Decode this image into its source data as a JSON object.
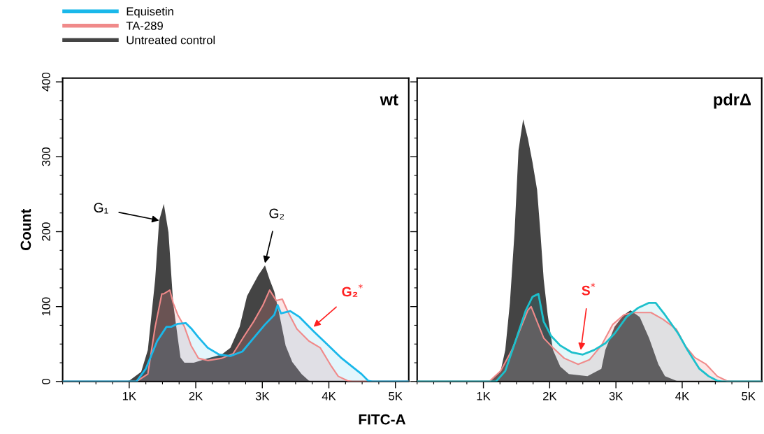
{
  "chart_data": [
    {
      "type": "area",
      "title": "wt",
      "xlabel": "FITC-A",
      "ylabel": "Count",
      "legend": "top left",
      "xlim": [
        0,
        5200
      ],
      "ylim": [
        0,
        405
      ],
      "xticks": [
        {
          "value": 0,
          "label": null
        },
        {
          "value": 250,
          "label": null
        },
        {
          "value": 500,
          "label": null
        },
        {
          "value": 750,
          "label": null
        },
        {
          "value": 1000,
          "label": "1K"
        },
        {
          "value": 1250,
          "label": null
        },
        {
          "value": 1500,
          "label": null
        },
        {
          "value": 1750,
          "label": null
        },
        {
          "value": 2000,
          "label": "2K"
        },
        {
          "value": 2250,
          "label": null
        },
        {
          "value": 2500,
          "label": null
        },
        {
          "value": 2750,
          "label": null
        },
        {
          "value": 3000,
          "label": "3K"
        },
        {
          "value": 3250,
          "label": null
        },
        {
          "value": 3500,
          "label": null
        },
        {
          "value": 3750,
          "label": null
        },
        {
          "value": 4000,
          "label": "4K"
        },
        {
          "value": 4250,
          "label": null
        },
        {
          "value": 4500,
          "label": null
        },
        {
          "value": 4750,
          "label": null
        },
        {
          "value": 5000,
          "label": "5K"
        }
      ],
      "yticks": [
        0,
        {
          "value": 25,
          "label": null
        },
        {
          "value": 50,
          "label": null
        },
        {
          "value": 75,
          "label": null
        },
        100,
        {
          "value": 125,
          "label": null
        },
        {
          "value": 150,
          "label": null
        },
        {
          "value": 175,
          "label": null
        },
        200,
        {
          "value": 225,
          "label": null
        },
        {
          "value": 250,
          "label": null
        },
        {
          "value": 275,
          "label": null
        },
        300,
        {
          "value": 325,
          "label": null
        },
        {
          "value": 350,
          "label": null
        },
        {
          "value": 375,
          "label": null
        },
        400
      ],
      "series": [
        {
          "name": "Untreated control",
          "color": "#444444",
          "x": [
            0,
            900,
            1000,
            1180,
            1280,
            1390,
            1450,
            1520,
            1590,
            1660,
            1730,
            1770,
            1830,
            1970,
            2180,
            2390,
            2520,
            2660,
            2770,
            2830,
            2940,
            3040,
            3110,
            3180,
            3250,
            3350,
            3450,
            3590,
            3700,
            3800,
            5200
          ],
          "values": [
            0,
            0,
            1,
            13,
            42,
            136,
            215,
            237,
            199,
            105,
            58,
            32,
            25,
            25,
            31,
            36,
            45,
            73,
            114,
            124,
            142,
            155,
            136,
            120,
            92,
            48,
            26,
            10,
            1,
            0,
            0
          ]
        },
        {
          "name": "TA-289",
          "color": "#f08a8a",
          "x": [
            0,
            1110,
            1280,
            1390,
            1490,
            1520,
            1610,
            1660,
            1730,
            1830,
            1930,
            2040,
            2180,
            2390,
            2560,
            2730,
            2870,
            3010,
            3110,
            3210,
            3300,
            3390,
            3520,
            3700,
            3870,
            4040,
            4140,
            4280,
            4350,
            5200
          ],
          "values": [
            0,
            0,
            10,
            73,
            117,
            117,
            122,
            105,
            89,
            73,
            48,
            31,
            28,
            31,
            37,
            61,
            80,
            102,
            122,
            108,
            110,
            92,
            70,
            54,
            45,
            20,
            7,
            1,
            0,
            0
          ]
        },
        {
          "name": "Equisetin",
          "color": "#1ab8ea",
          "x": [
            0,
            1110,
            1250,
            1420,
            1560,
            1630,
            1730,
            1850,
            1940,
            2040,
            2180,
            2350,
            2520,
            2700,
            2870,
            3040,
            3180,
            3230,
            3280,
            3420,
            3560,
            3770,
            3970,
            4180,
            4390,
            4490,
            4590,
            4650,
            5200
          ],
          "values": [
            0,
            0,
            17,
            54,
            73,
            73,
            77,
            78,
            70,
            59,
            45,
            36,
            34,
            40,
            58,
            76,
            89,
            102,
            91,
            94,
            86,
            67,
            50,
            32,
            17,
            10,
            1,
            0,
            0
          ]
        }
      ],
      "annotations": [
        {
          "text": "G₁",
          "x": 1450,
          "y": 215
        },
        {
          "text": "G₂",
          "x": 3040,
          "y": 158
        },
        {
          "text": "G₂$^{*}$",
          "x": 3770,
          "y": 73
        }
      ]
    },
    {
      "type": "area",
      "title": "pdrΔ",
      "tick_labels": "x",
      "xlim": [
        0,
        5200
      ],
      "ylim": [
        0,
        405
      ],
      "xticks": [
        {
          "value": 0,
          "label": null
        },
        {
          "value": 250,
          "label": null
        },
        {
          "value": 500,
          "label": null
        },
        {
          "value": 750,
          "label": null
        },
        {
          "value": 1000,
          "label": "1K"
        },
        {
          "value": 1250,
          "label": null
        },
        {
          "value": 1500,
          "label": null
        },
        {
          "value": 1750,
          "label": null
        },
        {
          "value": 2000,
          "label": "2K"
        },
        {
          "value": 2250,
          "label": null
        },
        {
          "value": 2500,
          "label": null
        },
        {
          "value": 2750,
          "label": null
        },
        {
          "value": 3000,
          "label": "3K"
        },
        {
          "value": 3250,
          "label": null
        },
        {
          "value": 3500,
          "label": null
        },
        {
          "value": 3750,
          "label": null
        },
        {
          "value": 4000,
          "label": "4K"
        },
        {
          "value": 4250,
          "label": null
        },
        {
          "value": 4500,
          "label": null
        },
        {
          "value": 4750,
          "label": null
        },
        {
          "value": 5000,
          "label": "5K"
        }
      ],
      "yticks": [
        0,
        {
          "value": 25,
          "label": null
        },
        {
          "value": 50,
          "label": null
        },
        {
          "value": 75,
          "label": null
        },
        100,
        {
          "value": 125,
          "label": null
        },
        {
          "value": 150,
          "label": null
        },
        {
          "value": 175,
          "label": null
        },
        200,
        {
          "value": 225,
          "label": null
        },
        {
          "value": 250,
          "label": null
        },
        {
          "value": 275,
          "label": null
        },
        300,
        {
          "value": 325,
          "label": null
        },
        {
          "value": 350,
          "label": null
        },
        {
          "value": 375,
          "label": null
        },
        400
      ],
      "series": [
        {
          "color": "#444444",
          "x": [
            0,
            1090,
            1260,
            1330,
            1400,
            1470,
            1530,
            1600,
            1670,
            1740,
            1810,
            1860,
            1910,
            1970,
            2050,
            2160,
            2290,
            2570,
            2780,
            2840,
            2980,
            3120,
            3220,
            3360,
            3500,
            3640,
            3740,
            3910,
            3980,
            5200
          ],
          "values": [
            0,
            0,
            14,
            42,
            105,
            199,
            309,
            350,
            325,
            293,
            256,
            199,
            136,
            89,
            42,
            20,
            10,
            7,
            17,
            42,
            73,
            89,
            95,
            86,
            58,
            23,
            7,
            1,
            0,
            0
          ]
        },
        {
          "color": "#f08a8a",
          "x": [
            0,
            1090,
            1260,
            1430,
            1570,
            1670,
            1720,
            1810,
            1910,
            2050,
            2220,
            2430,
            2600,
            2780,
            2950,
            3120,
            3260,
            3400,
            3530,
            3710,
            3910,
            4050,
            4190,
            4360,
            4530,
            4670,
            4740,
            5200
          ],
          "values": [
            0,
            0,
            14,
            42,
            73,
            95,
            100,
            80,
            58,
            45,
            31,
            23,
            29,
            48,
            76,
            89,
            92,
            92,
            92,
            83,
            70,
            47,
            32,
            23,
            7,
            1,
            0,
            0
          ]
        },
        {
          "color": "#1cc0cc",
          "x": [
            0,
            1190,
            1330,
            1500,
            1640,
            1740,
            1830,
            1910,
            2020,
            2160,
            2330,
            2500,
            2670,
            2840,
            2980,
            3160,
            3330,
            3500,
            3600,
            3740,
            3940,
            4080,
            4260,
            4400,
            4530,
            4600,
            5200
          ],
          "values": [
            0,
            0,
            14,
            58,
            95,
            113,
            117,
            80,
            61,
            48,
            39,
            36,
            42,
            51,
            64,
            86,
            98,
            105,
            105,
            89,
            64,
            42,
            17,
            7,
            1,
            0,
            0
          ]
        }
      ],
      "annotations": [
        {
          "text": "S$^{*}$",
          "x": 2470,
          "y": 42
        }
      ]
    }
  ]
}
